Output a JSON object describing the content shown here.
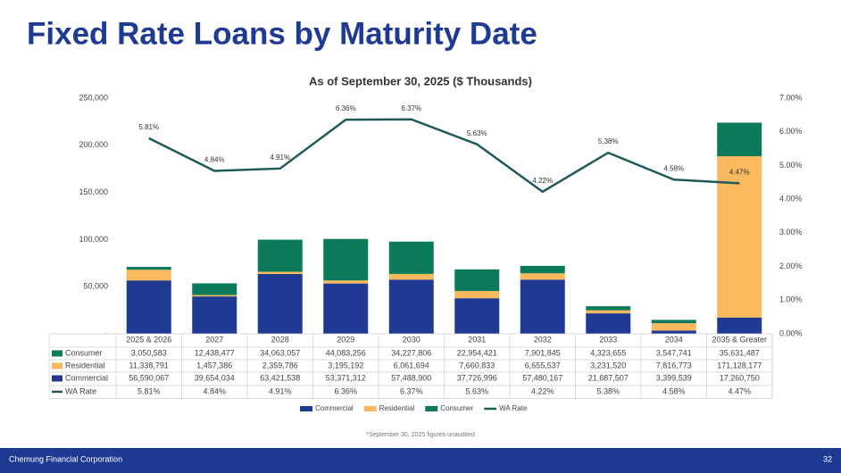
{
  "header": {
    "title": "Fixed Rate Loans by Maturity Date"
  },
  "chart_data": {
    "type": "bar",
    "stacked": true,
    "title": "As of September 30, 2025 ($ Thousands)",
    "categories": [
      "2025 & 2026",
      "2027",
      "2028",
      "2029",
      "2030",
      "2031",
      "2032",
      "2033",
      "2034",
      "2035 & Greater"
    ],
    "series": [
      {
        "name": "Commercial",
        "color": "#1f3a93",
        "values": [
          56590.067,
          39654.034,
          63421.538,
          53371.312,
          57488.9,
          37726.996,
          57480.167,
          21687.507,
          3399.539,
          17260.75
        ],
        "value_labels": [
          "56,590,067",
          "39,654,034",
          "63,421,538",
          "53,371,312",
          "57,488,900",
          "37,726,996",
          "57,480,167",
          "21,687,507",
          "3,399,539",
          "17,260,750"
        ]
      },
      {
        "name": "Residential",
        "color": "#f9b95c",
        "values": [
          11338.791,
          1457.386,
          2359.786,
          3195.192,
          6061.694,
          7660.833,
          6655.537,
          3231.52,
          7816.773,
          171128.177
        ],
        "value_labels": [
          "11,338,791",
          "1,457,386",
          "2,359,786",
          "3,195,192",
          "6,061,694",
          "7,660,833",
          "6,655,537",
          "3,231,520",
          "7,816,773",
          "171,128,177"
        ]
      },
      {
        "name": "Consumer",
        "color": "#0b7a5a",
        "values": [
          3050.583,
          12438.477,
          34063.057,
          44083.256,
          34227.806,
          22954.421,
          7901.845,
          4323.655,
          3547.741,
          35631.487
        ],
        "value_labels": [
          "3,050,583",
          "12,438,477",
          "34,063,057",
          "44,083,256",
          "34,227,806",
          "22,954,421",
          "7,901,845",
          "4,323,655",
          "3,547,741",
          "35,631,487"
        ]
      },
      {
        "name": "WA Rate",
        "type": "line",
        "axis": "y2",
        "color": "#1e5a5a",
        "values": [
          5.81,
          4.84,
          4.91,
          6.36,
          6.37,
          5.63,
          4.22,
          5.38,
          4.58,
          4.47
        ],
        "value_labels": [
          "5.81%",
          "4.84%",
          "4.91%",
          "6.36%",
          "6.37%",
          "5.63%",
          "4.22%",
          "5.38%",
          "4.58%",
          "4.47%"
        ]
      }
    ],
    "table_order": [
      2,
      1,
      0,
      3
    ],
    "ylim": [
      0,
      250000
    ],
    "yticks": [
      {
        "value": 0,
        "label": "-"
      },
      {
        "value": 50000,
        "label": "50,000"
      },
      {
        "value": 100000,
        "label": "100,000"
      },
      {
        "value": 150000,
        "label": "150,000"
      },
      {
        "value": 200000,
        "label": "200,000"
      },
      {
        "value": 250000,
        "label": "250,000"
      }
    ],
    "y2lim": [
      0,
      7
    ],
    "y2ticks": [
      {
        "value": 0,
        "label": "0.00%"
      },
      {
        "value": 1,
        "label": "1.00%"
      },
      {
        "value": 2,
        "label": "2.00%"
      },
      {
        "value": 3,
        "label": "3.00%"
      },
      {
        "value": 4,
        "label": "4.00%"
      },
      {
        "value": 5,
        "label": "5.00%"
      },
      {
        "value": 6,
        "label": "6.00%"
      },
      {
        "value": 7,
        "label": "7.00%"
      }
    ],
    "grid": false,
    "legend": "bottom"
  },
  "footnote": "*September 30, 2025 figures unaudited",
  "footer": {
    "company": "Chemung Financial Corporation",
    "page": "32"
  }
}
